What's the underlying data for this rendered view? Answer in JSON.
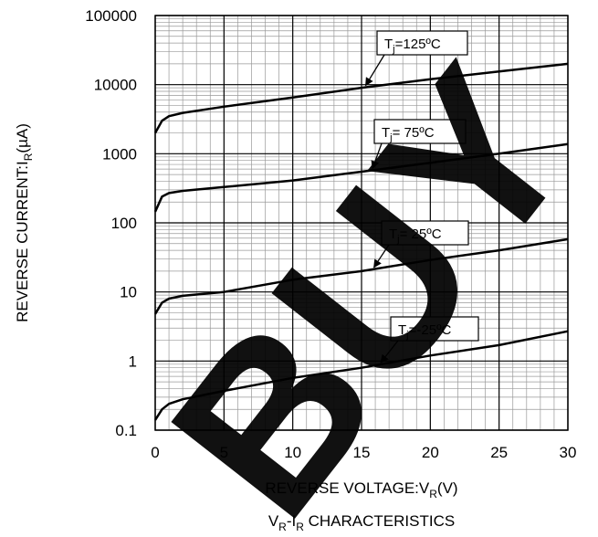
{
  "chart_data": {
    "type": "line",
    "log_y": true,
    "grid": true,
    "color": "#000000",
    "y_label": [
      "REVERSE CURRENT:I",
      "R",
      "(µA)"
    ],
    "x_label": [
      "REVERSE VOLTAGE:V",
      "R",
      "(V)"
    ],
    "caption": [
      "V",
      "R",
      "-I",
      "R",
      " CHARACTERISTICS"
    ],
    "watermark": "BUY",
    "x": [
      0,
      0.5,
      1,
      2,
      5,
      10,
      15,
      20,
      25,
      30
    ],
    "xlim": [
      0,
      30
    ],
    "xticks": [
      0,
      5,
      10,
      15,
      20,
      25,
      30
    ],
    "ylim": [
      0.1,
      100000
    ],
    "yticks": [
      0.1,
      1,
      10,
      100,
      1000,
      10000,
      100000
    ],
    "series": [
      {
        "label": [
          "T",
          "j",
          "=125ºC"
        ],
        "values": [
          2000,
          3000,
          3500,
          3900,
          4800,
          6500,
          9000,
          12000,
          15500,
          20000
        ]
      },
      {
        "label": [
          "T",
          "j",
          "= 75ºC"
        ],
        "values": [
          145,
          240,
          270,
          290,
          330,
          410,
          550,
          740,
          1000,
          1380
        ]
      },
      {
        "label": [
          "T",
          "j",
          "= 25ºC"
        ],
        "values": [
          4.8,
          7,
          8,
          8.8,
          10,
          15,
          20,
          29,
          40,
          58
        ]
      },
      {
        "label": [
          "T",
          "j",
          "=-25ºC"
        ],
        "values": [
          0.14,
          0.2,
          0.24,
          0.28,
          0.37,
          0.57,
          0.8,
          1.2,
          1.7,
          2.7
        ]
      }
    ]
  }
}
